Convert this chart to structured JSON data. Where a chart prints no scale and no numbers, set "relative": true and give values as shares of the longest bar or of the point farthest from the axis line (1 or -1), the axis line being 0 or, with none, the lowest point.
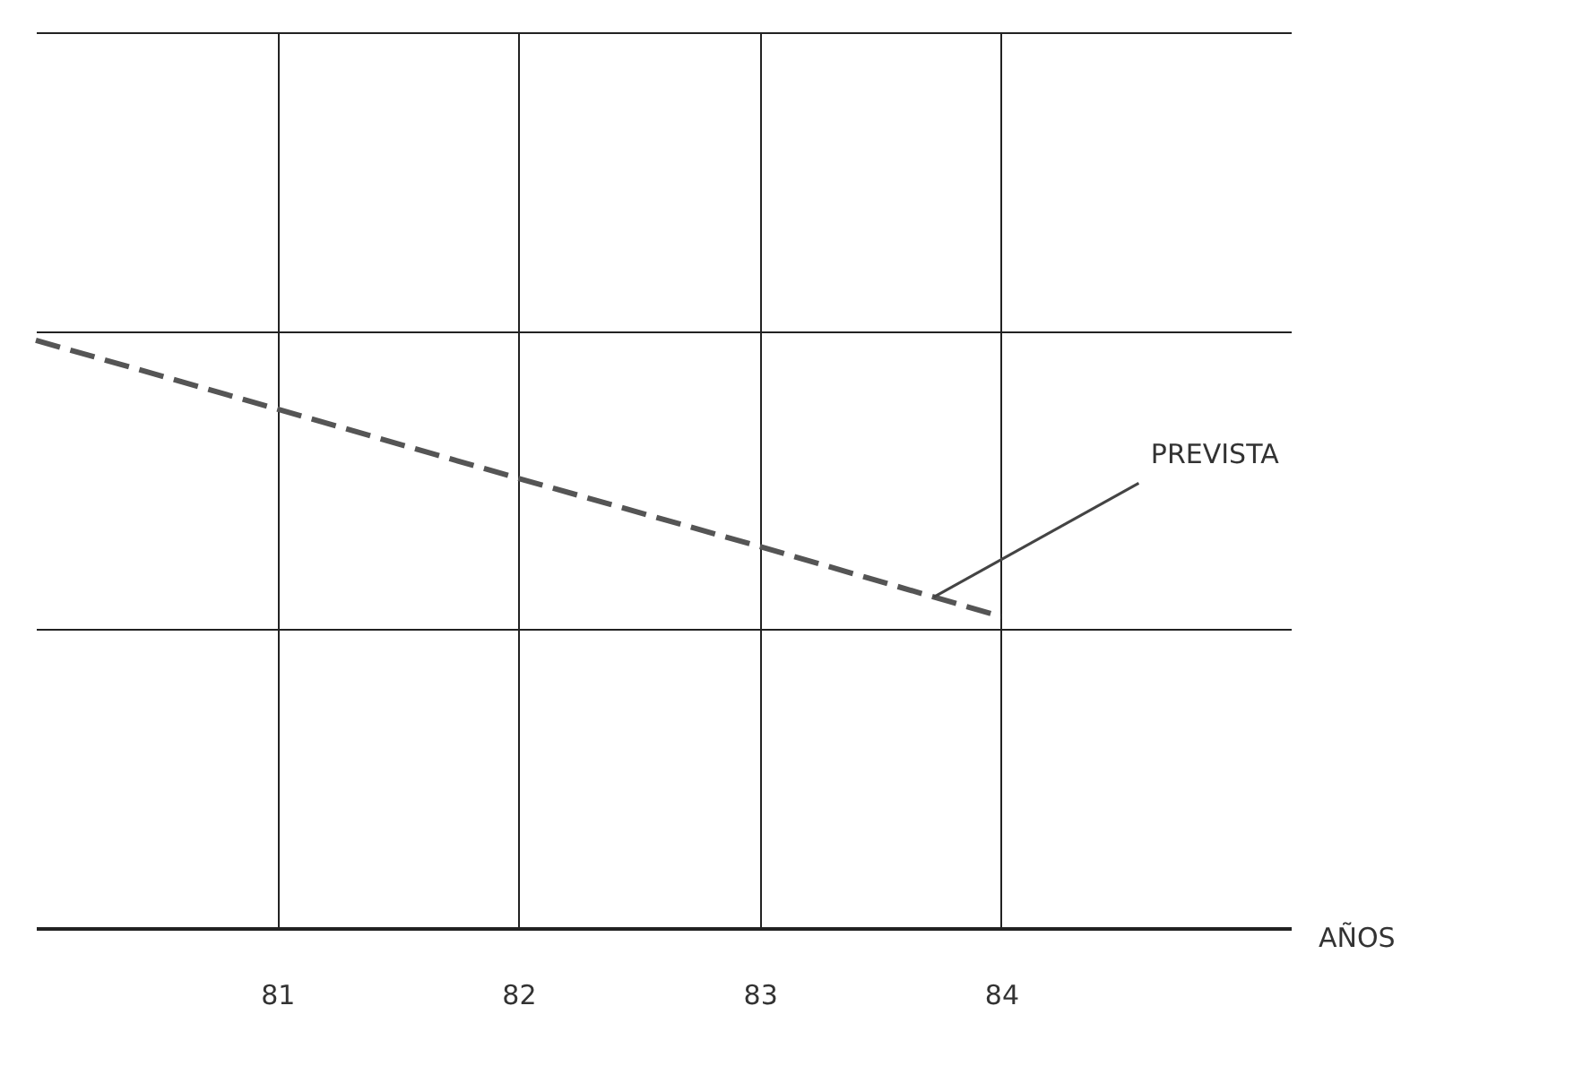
{
  "chart_data": {
    "type": "line",
    "relative": true,
    "xlabel": "AÑOS",
    "x": [
      80,
      81,
      82,
      83,
      84
    ],
    "series": [
      {
        "color": "#555555",
        "values": [
          1,
          0.883,
          0.765,
          0.649,
          0.53
        ]
      }
    ],
    "xlim": [
      80,
      85.2
    ],
    "xticks": [
      81,
      82,
      83,
      84
    ],
    "grid": true,
    "line_style": "dashed",
    "marker": "none",
    "annotations": [
      {
        "text": "PREVISTA",
        "x": 83.72,
        "y": 0.563
      }
    ]
  }
}
